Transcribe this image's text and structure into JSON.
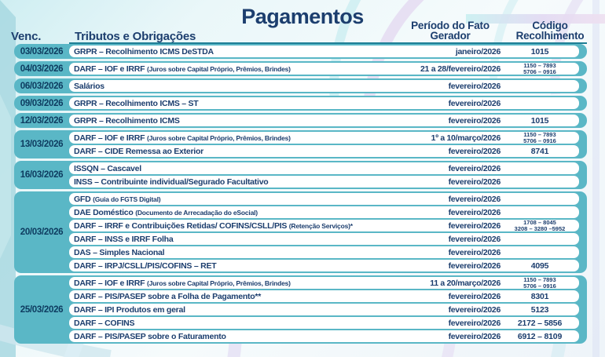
{
  "title": "Pagamentos",
  "columns": {
    "venc": "Venc.",
    "tributos": "Tributos e Obrigações",
    "periodo_line1": "Período do Fato",
    "periodo_line2": "Gerador",
    "codigo_line1": "Código",
    "codigo_line2": "Recolhimento"
  },
  "colors": {
    "accent_teal": "#5ab7c6",
    "text_navy": "#1c3e6e",
    "header_rule": "#1e7e95"
  },
  "groups": [
    {
      "date": "03/03/2026",
      "rows": [
        {
          "name": "GRPR – Recolhimento ICMS DeSTDA",
          "note": "",
          "period": "janeiro/2026",
          "codes": [
            "1015"
          ]
        }
      ]
    },
    {
      "date": "04/03/2026",
      "rows": [
        {
          "name": "DARF – IOF e IRRF",
          "note": "(Juros sobre Capital Próprio, Prêmios, Brindes)",
          "period": "21 a 28/fevereiro/2026",
          "codes": [
            "1150 – 7893",
            "5706 – 0916"
          ]
        }
      ]
    },
    {
      "date": "06/03/2026",
      "rows": [
        {
          "name": "Salários",
          "note": "",
          "period": "fevereiro/2026",
          "codes": []
        }
      ]
    },
    {
      "date": "09/03/2026",
      "rows": [
        {
          "name": "GRPR – Recolhimento ICMS – ST",
          "note": "",
          "period": "fevereiro/2026",
          "codes": []
        }
      ]
    },
    {
      "date": "12/03/2026",
      "rows": [
        {
          "name": "GRPR – Recolhimento ICMS",
          "note": "",
          "period": "fevereiro/2026",
          "codes": [
            "1015"
          ]
        }
      ]
    },
    {
      "date": "13/03/2026",
      "rows": [
        {
          "name": "DARF – IOF e IRRF",
          "note": "(Juros sobre Capital Próprio, Prêmios, Brindes)",
          "period": "1º a 10/março/2026",
          "codes": [
            "1150 – 7893",
            "5706 – 0916"
          ]
        },
        {
          "name": "DARF – CIDE  Remessa ao Exterior",
          "note": "",
          "period": "fevereiro/2026",
          "codes": [
            "8741"
          ]
        }
      ]
    },
    {
      "date": "16/03/2026",
      "rows": [
        {
          "name": "ISSQN – Cascavel",
          "note": "",
          "period": "fevereiro/2026",
          "codes": []
        },
        {
          "name": "INSS – Contribuinte individual/Segurado Facultativo",
          "note": "",
          "period": "fevereiro/2026",
          "codes": []
        }
      ]
    },
    {
      "date": "20/03/2026",
      "rows": [
        {
          "name": "GFD",
          "note": "(Guia do FGTS Digital)",
          "period": "fevereiro/2026",
          "codes": []
        },
        {
          "name": "DAE Doméstico",
          "note": "(Documento de Arrecadação do eSocial)",
          "period": "fevereiro/2026",
          "codes": []
        },
        {
          "name": "DARF – IRRF e Contribuições Retidas/ COFINS/CSLL/PIS",
          "note": "(Retenção Serviços)*",
          "period": "fevereiro/2026",
          "codes": [
            "1708 – 8045",
            "3208 – 3280 –5952"
          ]
        },
        {
          "name": "DARF – INSS e IRRF  Folha",
          "note": "",
          "period": "fevereiro/2026",
          "codes": []
        },
        {
          "name": "DAS – Simples Nacional",
          "note": "",
          "period": "fevereiro/2026",
          "codes": []
        },
        {
          "name": "DARF – IRPJ/CSLL/PIS/COFINS – RET",
          "note": "",
          "period": "fevereiro/2026",
          "codes": [
            "4095"
          ]
        }
      ]
    },
    {
      "date": "25/03/2026",
      "rows": [
        {
          "name": "DARF – IOF e IRRF",
          "note": "(Juros sobre Capital Próprio, Prêmios, Brindes)",
          "period": "11 a 20/março/2026",
          "codes": [
            "1150 – 7893",
            "5706 – 0916"
          ]
        },
        {
          "name": "DARF – PIS/PASEP sobre a Folha de Pagamento**",
          "note": "",
          "period": "fevereiro/2026",
          "codes": [
            "8301"
          ]
        },
        {
          "name": "DARF – IPI Produtos em geral",
          "note": "",
          "period": "fevereiro/2026",
          "codes": [
            "5123"
          ]
        },
        {
          "name": "DARF – COFINS",
          "note": "",
          "period": "fevereiro/2026",
          "codes": [
            "2172 – 5856"
          ]
        },
        {
          "name": "DARF – PIS/PASEP sobre o Faturamento",
          "note": "",
          "period": "fevereiro/2026",
          "codes": [
            "6912 – 8109"
          ]
        }
      ]
    }
  ]
}
